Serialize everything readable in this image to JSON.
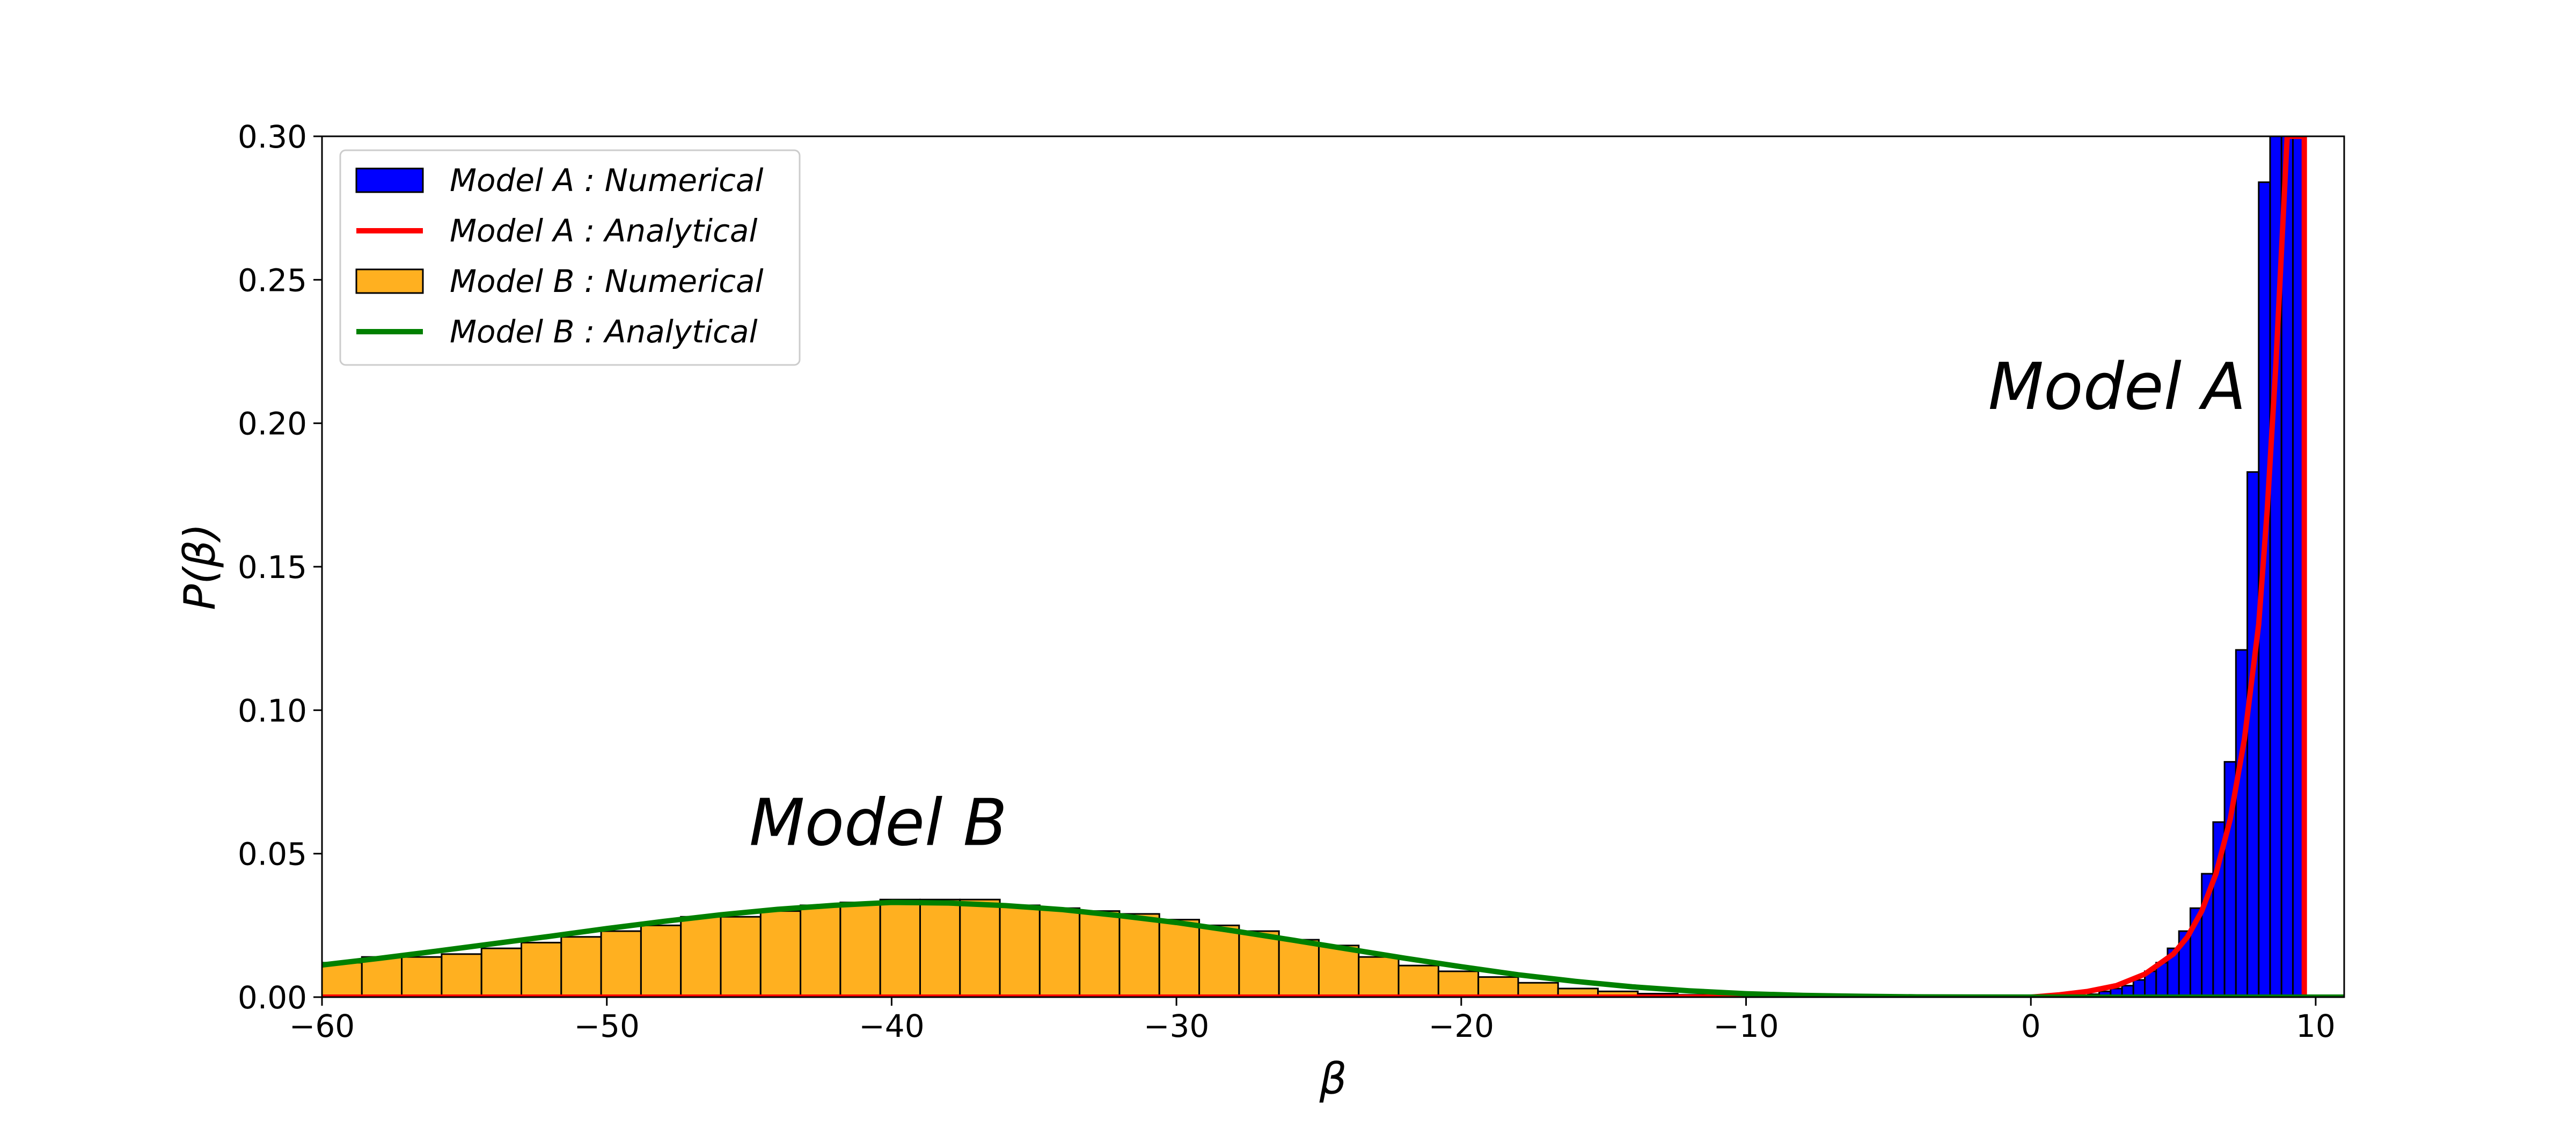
{
  "chart_data": {
    "type": "bar",
    "title": "",
    "xlabel": "β",
    "ylabel": "P(β)",
    "xlim": [
      -60,
      11
    ],
    "ylim": [
      0,
      0.3
    ],
    "x_ticks": [
      -60,
      -50,
      -40,
      -30,
      -20,
      -10,
      0,
      10
    ],
    "x_tick_labels": [
      "−60",
      "−50",
      "−40",
      "−30",
      "−20",
      "−10",
      "0",
      "10"
    ],
    "y_ticks": [
      0.0,
      0.05,
      0.1,
      0.15,
      0.2,
      0.25,
      0.3
    ],
    "y_tick_labels": [
      "0.00",
      "0.05",
      "0.10",
      "0.15",
      "0.20",
      "0.25",
      "0.30"
    ],
    "grid": false,
    "legend_position": "top-left",
    "annotations": [
      {
        "text": "Model A",
        "x": -1.5,
        "y": 0.205
      },
      {
        "text": "Model B",
        "x": -45,
        "y": 0.053
      }
    ],
    "series": [
      {
        "name": "Model A : Numerical",
        "kind": "histogram",
        "color": "#0000ff",
        "bin_width": 0.4,
        "bin_left_edges": [
          2.0,
          2.4,
          2.8,
          3.2,
          3.6,
          4.0,
          4.4,
          4.8,
          5.2,
          5.6,
          6.0,
          6.4,
          6.8,
          7.2,
          7.6,
          8.0,
          8.4,
          8.8,
          9.2
        ],
        "values": [
          0.001,
          0.002,
          0.003,
          0.004,
          0.006,
          0.009,
          0.012,
          0.017,
          0.023,
          0.031,
          0.043,
          0.061,
          0.082,
          0.121,
          0.183,
          0.284,
          0.3,
          0.3,
          0.3
        ]
      },
      {
        "name": "Model A : Analytical",
        "kind": "line",
        "color": "#ff0000",
        "x": [
          -60,
          -10,
          0,
          1,
          2,
          3,
          4,
          5,
          5.5,
          6,
          6.5,
          7,
          7.5,
          8,
          8.3,
          8.6,
          8.8,
          9.0,
          9.6,
          9.6
        ],
        "values": [
          0,
          0,
          0,
          0.0008,
          0.002,
          0.004,
          0.008,
          0.015,
          0.021,
          0.03,
          0.043,
          0.062,
          0.09,
          0.13,
          0.17,
          0.22,
          0.26,
          0.3,
          0.3,
          0
        ]
      },
      {
        "name": "Model B : Numerical",
        "kind": "histogram",
        "color": "#ffb020",
        "bin_width": 1.4,
        "bin_left_edges": [
          -60.0,
          -58.6,
          -57.2,
          -55.8,
          -54.4,
          -53.0,
          -51.6,
          -50.2,
          -48.8,
          -47.4,
          -46.0,
          -44.6,
          -43.2,
          -41.8,
          -40.4,
          -39.0,
          -37.6,
          -36.2,
          -34.8,
          -33.4,
          -32.0,
          -30.6,
          -29.2,
          -27.8,
          -26.4,
          -25.0,
          -23.6,
          -22.2,
          -20.8,
          -19.4,
          -18.0,
          -16.6,
          -15.2,
          -13.8,
          -12.4,
          -11.0,
          -9.6,
          -8.2,
          -6.8,
          -5.4,
          -4.0,
          -2.6,
          -1.2,
          0.2,
          1.6,
          3.0
        ],
        "values": [
          0.012,
          0.014,
          0.014,
          0.015,
          0.017,
          0.019,
          0.021,
          0.023,
          0.025,
          0.028,
          0.028,
          0.03,
          0.032,
          0.033,
          0.034,
          0.034,
          0.034,
          0.032,
          0.031,
          0.03,
          0.029,
          0.027,
          0.025,
          0.023,
          0.02,
          0.018,
          0.014,
          0.011,
          0.009,
          0.007,
          0.005,
          0.003,
          0.002,
          0.0012,
          0.0008,
          0.0005,
          0.0003,
          0.0002,
          0.0001,
          0.0001,
          0.0001,
          0.0001,
          0.0001,
          0.0001,
          0.0001,
          0.0001
        ]
      },
      {
        "name": "Model B : Analytical",
        "kind": "line",
        "color": "#008000",
        "x": [
          -60,
          -58,
          -56,
          -54,
          -52,
          -50,
          -48,
          -46,
          -44,
          -42,
          -40,
          -38,
          -36,
          -34,
          -32,
          -30,
          -28,
          -26,
          -24,
          -22,
          -20,
          -18,
          -16,
          -14,
          -12,
          -10,
          -8,
          -6,
          -4,
          -2,
          0,
          2,
          4,
          6,
          8,
          10,
          11
        ],
        "values": [
          0.0112,
          0.0135,
          0.016,
          0.0186,
          0.0212,
          0.0239,
          0.0264,
          0.0287,
          0.0306,
          0.032,
          0.033,
          0.0328,
          0.0319,
          0.0305,
          0.0284,
          0.026,
          0.0231,
          0.02,
          0.0168,
          0.0136,
          0.0106,
          0.0078,
          0.0055,
          0.0036,
          0.0022,
          0.0012,
          0.0006,
          0.0003,
          0.0001,
          5e-05,
          2e-05,
          1e-05,
          0.0,
          0.0,
          0.0,
          0.0,
          0.0
        ]
      }
    ]
  }
}
